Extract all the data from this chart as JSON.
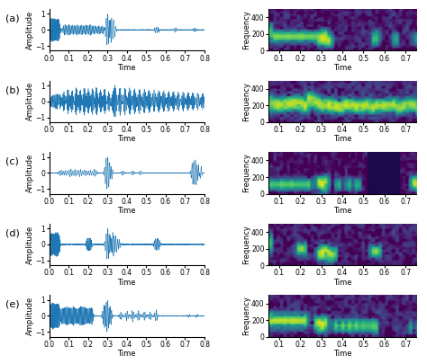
{
  "rows": [
    "(a)",
    "(b)",
    "(c)",
    "(d)",
    "(e)"
  ],
  "waveform_color": "#1f77b4",
  "waveform_linewidth": 0.4,
  "ylabel_wave": "Amplitude",
  "xlabel_wave": "Time",
  "ylabel_spec": "Frequency",
  "xlabel_spec": "Time",
  "yticks_wave": [
    -1,
    0,
    1
  ],
  "xticks_wave": [
    0.0,
    0.1,
    0.2,
    0.3,
    0.4,
    0.5,
    0.6,
    0.7,
    0.8
  ],
  "xticks_spec": [
    0.1,
    0.2,
    0.3,
    0.4,
    0.5,
    0.6,
    0.7
  ],
  "fs": 4000,
  "duration": 0.8,
  "cmap": "viridis",
  "background_color": "#ffffff",
  "label_fontsize": 6,
  "tick_fontsize": 5.5,
  "row_label_fontsize": 8,
  "wave_ylim": [
    -1.3,
    1.3
  ],
  "spec_freq_max": 500
}
